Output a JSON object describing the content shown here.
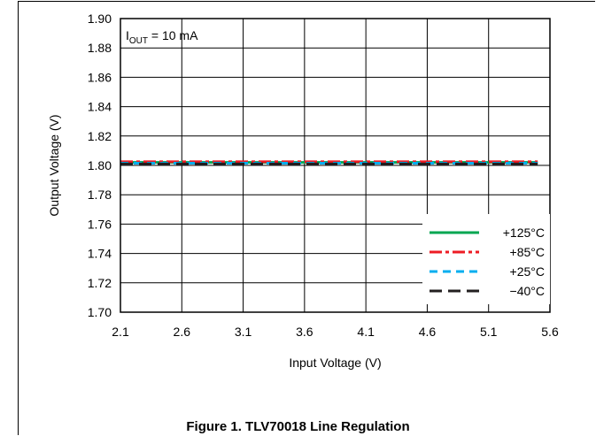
{
  "figure": {
    "caption": "Figure 1. TLV70018 Line Regulation"
  },
  "chart_data": {
    "type": "line",
    "xlabel": "Input Voltage (V)",
    "ylabel": "Output Voltage (V)",
    "xlim": [
      2.1,
      5.6
    ],
    "ylim": [
      1.7,
      1.9
    ],
    "xticks": [
      2.1,
      2.6,
      3.1,
      3.6,
      4.1,
      4.6,
      5.1,
      5.6
    ],
    "yticks": [
      1.7,
      1.72,
      1.74,
      1.76,
      1.78,
      1.8,
      1.82,
      1.84,
      1.86,
      1.88,
      1.9
    ],
    "xtick_labels": [
      "2.1",
      "2.6",
      "3.1",
      "3.6",
      "4.1",
      "4.6",
      "5.1",
      "5.6"
    ],
    "ytick_labels": [
      "1.70",
      "1.72",
      "1.74",
      "1.76",
      "1.78",
      "1.80",
      "1.82",
      "1.84",
      "1.86",
      "1.88",
      "1.90"
    ],
    "grid": true,
    "legend_position": "bottom-right",
    "annotation": {
      "main": "I",
      "sub": "OUT",
      "rest": " = 10 mA"
    },
    "series": [
      {
        "name": "+125°C",
        "color": "#00a651",
        "dash": "solid",
        "x": [
          2.1,
          5.5
        ],
        "y": [
          1.802,
          1.802
        ]
      },
      {
        "name": "+85°C",
        "color": "#ed1c24",
        "dash": "dashdot",
        "x": [
          2.1,
          5.5
        ],
        "y": [
          1.8025,
          1.8025
        ]
      },
      {
        "name": "+25°C",
        "color": "#00aeef",
        "dash": "dash",
        "x": [
          2.1,
          5.5
        ],
        "y": [
          1.8015,
          1.8015
        ]
      },
      {
        "name": "−40°C",
        "color": "#231f20",
        "dash": "longdash",
        "x": [
          2.1,
          5.5
        ],
        "y": [
          1.801,
          1.801
        ]
      }
    ]
  }
}
